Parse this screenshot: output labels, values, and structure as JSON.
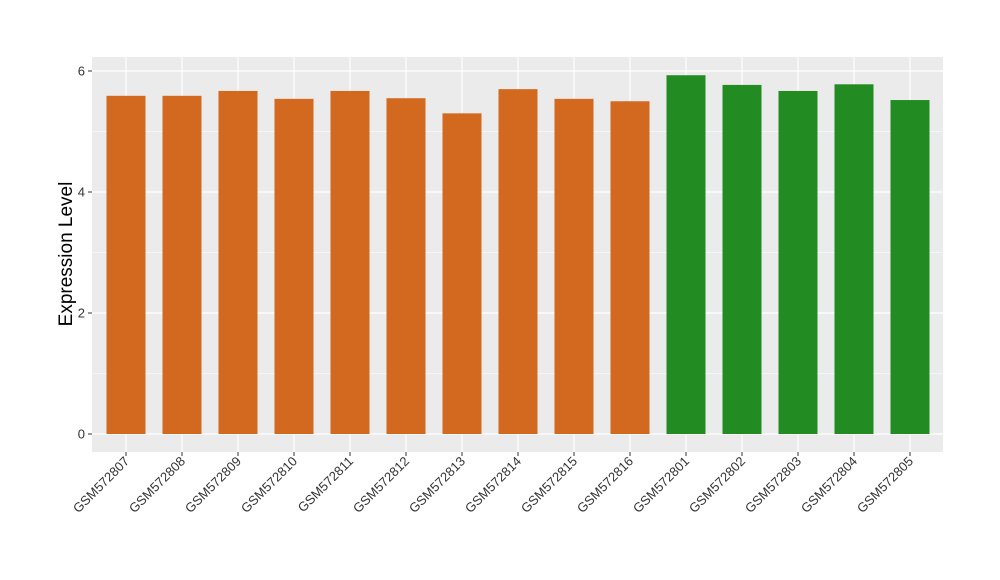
{
  "chart_data": {
    "type": "bar",
    "title": "",
    "xlabel": "",
    "ylabel": "Expression Level",
    "ylim": [
      0,
      6.2
    ],
    "yticks": [
      0,
      2,
      4,
      6
    ],
    "grid": true,
    "legend": "none",
    "colors": {
      "group1": "#d2691e",
      "group2": "#228b22",
      "panel": "#ebebeb",
      "grid": "#ffffff"
    },
    "categories": [
      "GSM572807",
      "GSM572808",
      "GSM572809",
      "GSM572810",
      "GSM572811",
      "GSM572812",
      "GSM572813",
      "GSM572814",
      "GSM572815",
      "GSM572816",
      "GSM572801",
      "GSM572802",
      "GSM572803",
      "GSM572804",
      "GSM572805"
    ],
    "values": [
      5.59,
      5.59,
      5.67,
      5.54,
      5.67,
      5.55,
      5.3,
      5.7,
      5.54,
      5.5,
      5.93,
      5.77,
      5.67,
      5.78,
      5.52
    ],
    "groups": [
      "group1",
      "group1",
      "group1",
      "group1",
      "group1",
      "group1",
      "group1",
      "group1",
      "group1",
      "group1",
      "group2",
      "group2",
      "group2",
      "group2",
      "group2"
    ]
  }
}
